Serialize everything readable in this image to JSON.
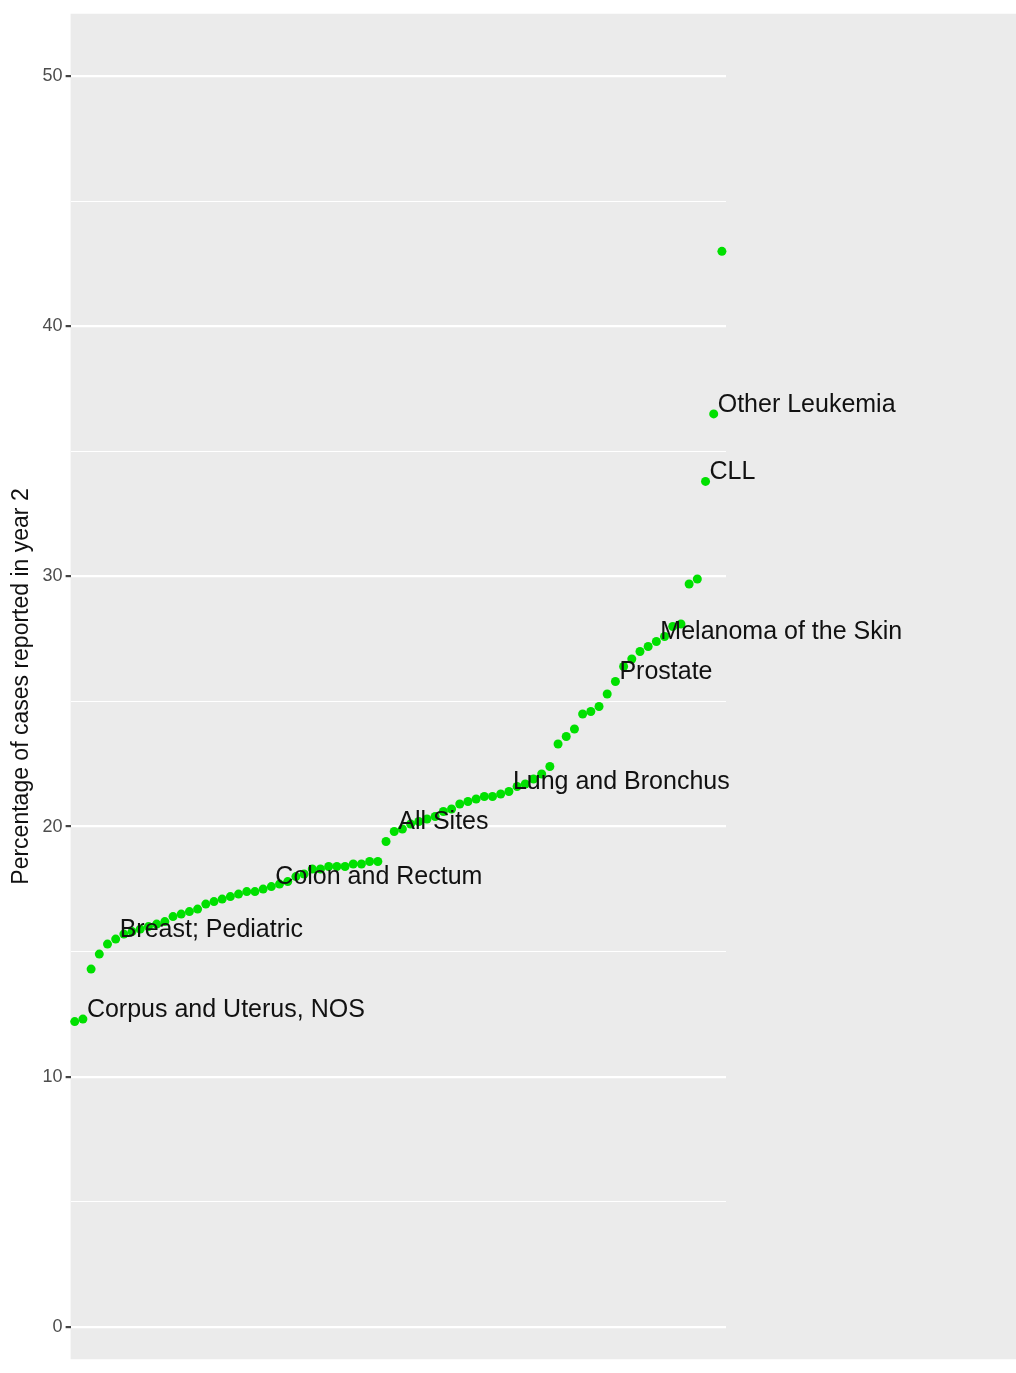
{
  "chart_data": {
    "type": "scatter",
    "ylabel": "Percentage of cases reported in year 2",
    "categories": [
      null,
      null,
      null,
      null,
      null,
      null,
      null,
      null,
      null,
      null,
      null,
      null,
      null,
      null,
      null,
      null,
      null,
      null,
      null,
      null,
      null,
      null,
      null,
      null,
      null,
      null,
      null,
      null,
      null,
      null,
      null,
      null,
      null,
      null,
      null,
      null,
      null,
      null,
      null,
      null,
      null,
      null,
      null,
      null,
      null,
      null,
      null,
      null,
      null,
      null,
      null,
      null,
      null,
      null,
      null,
      null,
      null,
      null,
      null,
      null,
      null,
      null,
      null,
      null,
      null,
      null,
      null,
      null,
      null,
      null,
      null,
      null,
      null,
      null,
      null,
      null,
      null,
      null,
      null,
      null
    ],
    "values": [
      12.2,
      12.3,
      14.3,
      14.9,
      15.3,
      15.5,
      15.7,
      15.8,
      15.9,
      16.0,
      16.1,
      16.2,
      16.4,
      16.5,
      16.6,
      16.7,
      16.9,
      17.0,
      17.1,
      17.2,
      17.3,
      17.4,
      17.4,
      17.5,
      17.6,
      17.7,
      17.8,
      18.0,
      18.1,
      18.3,
      18.3,
      18.4,
      18.4,
      18.4,
      18.5,
      18.5,
      18.6,
      18.6,
      19.4,
      19.8,
      19.9,
      20.1,
      20.2,
      20.3,
      20.4,
      20.6,
      20.7,
      20.9,
      21.0,
      21.1,
      21.2,
      21.2,
      21.3,
      21.4,
      21.6,
      21.7,
      21.9,
      22.1,
      22.4,
      23.3,
      23.6,
      23.9,
      24.5,
      24.6,
      24.8,
      25.3,
      25.8,
      26.4,
      26.7,
      27.0,
      27.2,
      27.4,
      27.6,
      28.0,
      28.1,
      29.7,
      29.9,
      33.8,
      36.5,
      43.0
    ],
    "color": "#00e000",
    "marker": "circle",
    "grid": "y",
    "tick_labels": "y",
    "ylim": [
      -1.3,
      52.5
    ],
    "yticks": [
      0,
      {
        "value": 5,
        "label": null
      },
      10,
      {
        "value": 15,
        "label": null
      },
      20,
      {
        "value": 25,
        "label": null
      },
      30,
      {
        "value": 35,
        "label": null
      },
      40,
      {
        "value": 45,
        "label": null
      },
      50
    ],
    "annotations": [
      "Corpus and Uterus, NOS",
      "Breast; Pediatric",
      "Colon and Rectum",
      "All Sites",
      "Lung and Bronchus",
      "Prostate",
      "Melanoma of the Skin",
      "CLL",
      "Other Leukemia"
    ]
  }
}
